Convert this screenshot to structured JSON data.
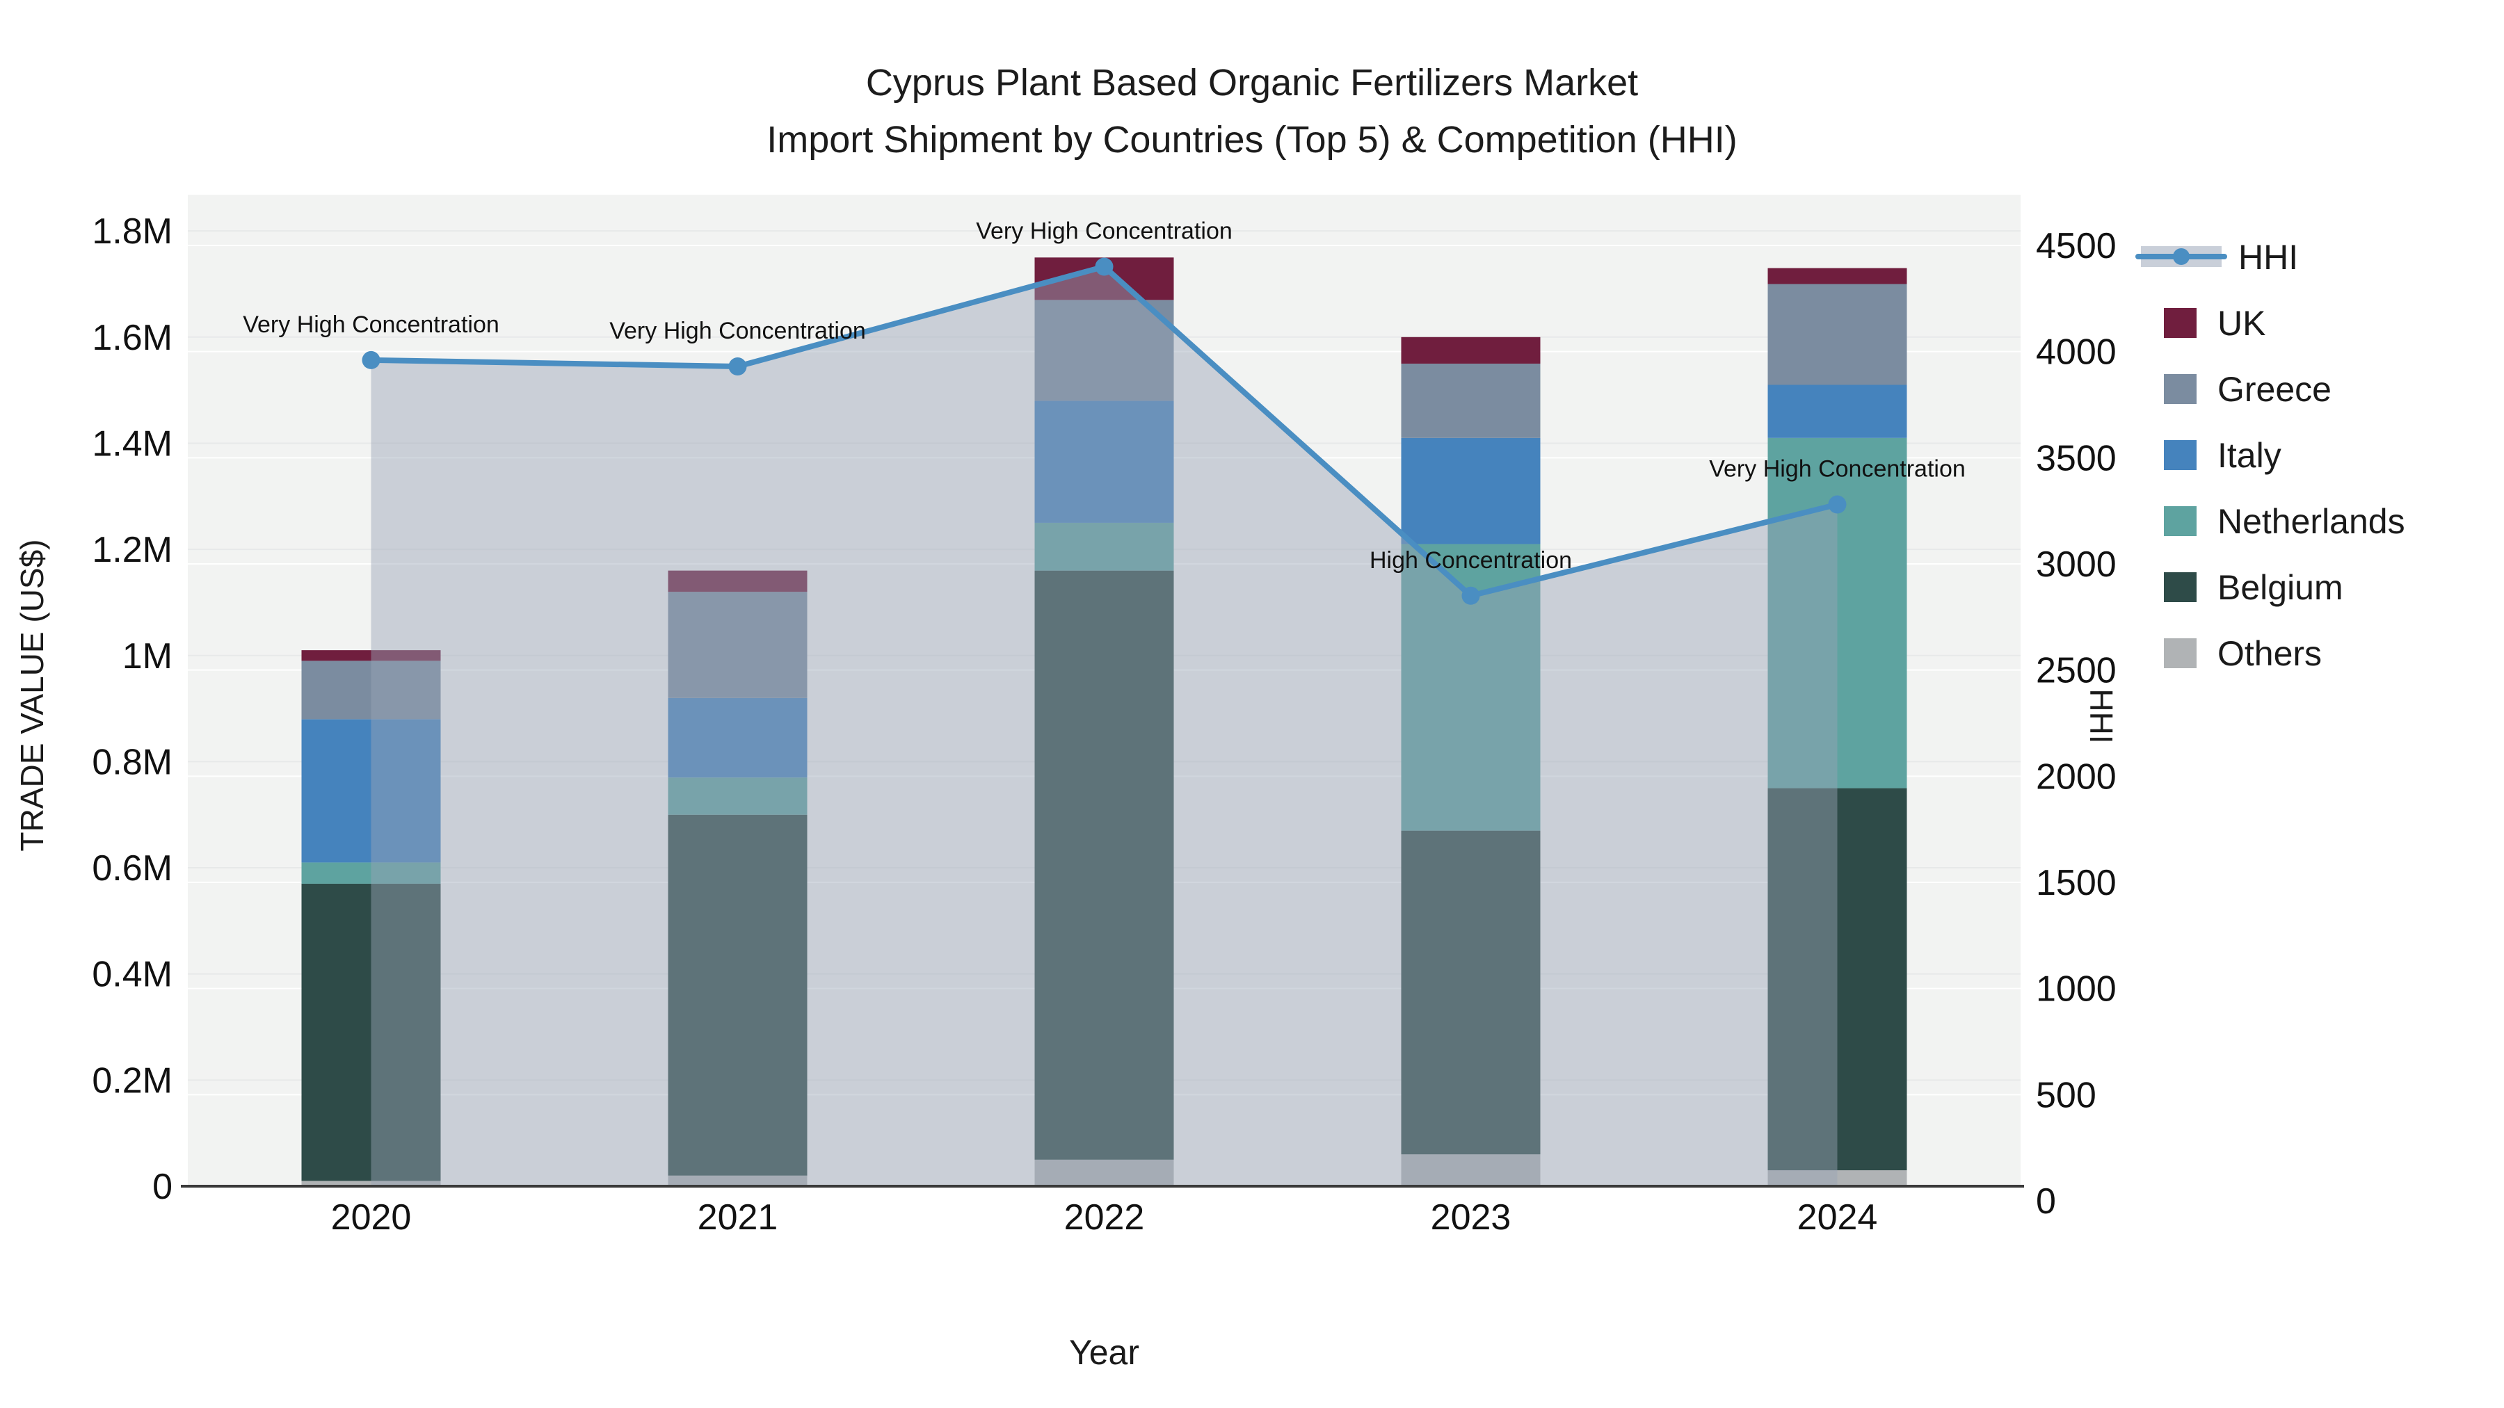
{
  "title": {
    "line1": "Cyprus Plant Based Organic Fertilizers Market",
    "line2": "Import Shipment by Countries (Top 5) & Competition (HHI)"
  },
  "chart_data": {
    "type": "bar+line",
    "title": "Cyprus Plant Based Organic Fertilizers Market — Import Shipment by Countries (Top 5) & Competition (HHI)",
    "categories": [
      "2020",
      "2021",
      "2022",
      "2023",
      "2024"
    ],
    "value_unit": "million US$",
    "stack_order": [
      "Others",
      "Belgium",
      "Netherlands",
      "Italy",
      "Greece",
      "UK"
    ],
    "series": [
      {
        "name": "UK",
        "color": "#701e3e",
        "values": [
          0.02,
          0.04,
          0.08,
          0.05,
          0.03
        ]
      },
      {
        "name": "Greece",
        "color": "#7b8ca0",
        "values": [
          0.11,
          0.2,
          0.19,
          0.14,
          0.19
        ]
      },
      {
        "name": "Italy",
        "color": "#4583bd",
        "values": [
          0.27,
          0.15,
          0.23,
          0.2,
          0.1
        ]
      },
      {
        "name": "Netherlands",
        "color": "#5ea3a0",
        "values": [
          0.04,
          0.07,
          0.09,
          0.54,
          0.66
        ]
      },
      {
        "name": "Belgium",
        "color": "#2e4b48",
        "values": [
          0.56,
          0.68,
          1.11,
          0.61,
          0.72
        ]
      },
      {
        "name": "Others",
        "color": "#b0b3b5",
        "values": [
          0.01,
          0.02,
          0.05,
          0.06,
          0.03
        ]
      }
    ],
    "bar_totals": [
      1.01,
      1.16,
      1.75,
      1.6,
      1.73
    ],
    "hhi": {
      "name": "HHI",
      "line_color": "#4a8ec2",
      "fill_color": "rgba(152,163,182,0.45)",
      "values": [
        3960,
        3930,
        4400,
        2850,
        3280
      ],
      "annotations": [
        "Very High Concentration",
        "Very High Concentration",
        "Very High Concentration",
        "High Concentration",
        "Very High Concentration"
      ]
    },
    "xlabel": "Year",
    "y_left": {
      "label": "TRADE VALUE (US$)",
      "ticks": [
        "0",
        "0.2M",
        "0.4M",
        "0.6M",
        "0.8M",
        "1M",
        "1.2M",
        "1.4M",
        "1.6M",
        "1.8M"
      ],
      "tick_values": [
        0,
        0.2,
        0.4,
        0.6,
        0.8,
        1.0,
        1.2,
        1.4,
        1.6,
        1.8
      ],
      "range": [
        0,
        1.85
      ]
    },
    "y_right": {
      "label": "HHI",
      "ticks": [
        "0",
        "500",
        "1000",
        "1500",
        "2000",
        "2500",
        "3000",
        "3500",
        "4000",
        "4500"
      ],
      "tick_values": [
        0,
        500,
        1000,
        1500,
        2000,
        2500,
        3000,
        3500,
        4000,
        4500
      ],
      "range": [
        0,
        4500
      ]
    },
    "legend_position": "right",
    "grid": true,
    "plot_bg": "#f2f3f2"
  },
  "legend": {
    "hhi_label": "HHI",
    "items": [
      "HHI",
      "UK",
      "Greece",
      "Italy",
      "Netherlands",
      "Belgium",
      "Others"
    ]
  }
}
